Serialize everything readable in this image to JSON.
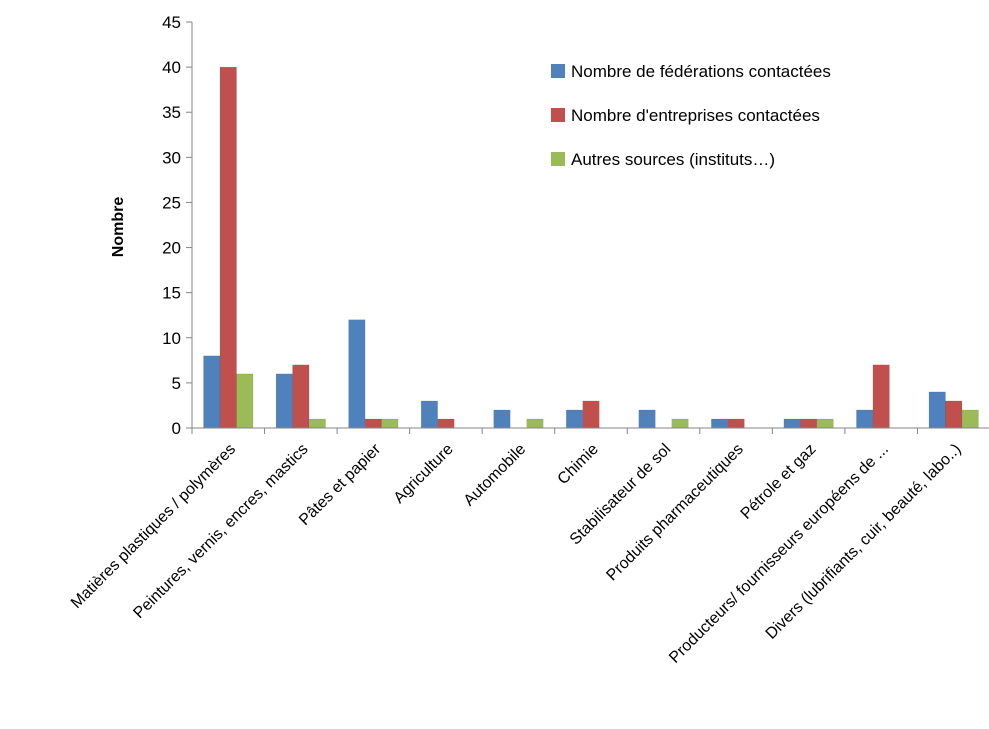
{
  "chart_data": {
    "type": "bar",
    "title": "",
    "xlabel": "",
    "ylabel": "Nombre",
    "ylim": [
      0,
      45
    ],
    "yticks": [
      0,
      5,
      10,
      15,
      20,
      25,
      30,
      35,
      40,
      45
    ],
    "grid": false,
    "legend_position": "top-right",
    "categories": [
      "Matières plastiques / polymères",
      "Peintures, vernis, encres, mastics",
      "Pâtes et papier",
      "Agriculture",
      "Automobile",
      "Chimie",
      "Stabilisateur de sol",
      "Produits pharmaceutiques",
      "Pétrole et gaz",
      "Producteurs/ fournisseurs européens de ...",
      "Divers (lubrifiants, cuir,  beauté, labo..)"
    ],
    "series": [
      {
        "name": "Nombre de fédérations contactées",
        "color": "#4f81bd",
        "values": [
          8,
          6,
          12,
          3,
          2,
          2,
          2,
          1,
          1,
          2,
          4
        ]
      },
      {
        "name": "Nombre d'entreprises contactées",
        "color": "#c0504d",
        "values": [
          40,
          7,
          1,
          1,
          0,
          3,
          0,
          1,
          1,
          7,
          3
        ]
      },
      {
        "name": "Autres sources (instituts…)",
        "color": "#9bbb59",
        "values": [
          6,
          1,
          1,
          0,
          1,
          0,
          1,
          0,
          1,
          0,
          2
        ]
      }
    ]
  }
}
